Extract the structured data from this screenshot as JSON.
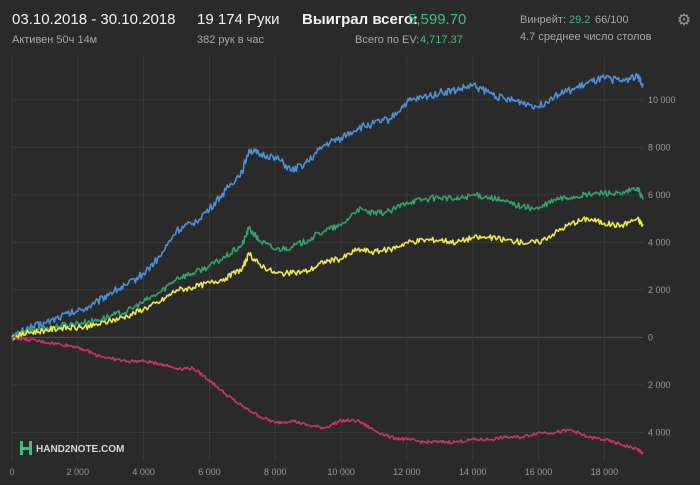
{
  "header": {
    "date_range": "03.10.2018 - 30.10.2018",
    "active": "Активен 50ч 14м",
    "hands": "19 174 Руки",
    "hands_per_hour": "382 рук в час",
    "won_label": "Выиграл всего:",
    "won_value": "5,599.70",
    "ev_label": "Всего по EV:",
    "ev_value": "4,717.37",
    "winrate_label": "Винрейт:",
    "winrate_value": "29.2",
    "winrate_extra": "66/100",
    "tables": "4.7 среднее число столов"
  },
  "logo_text": "HAND2NOTE.COM",
  "colors": {
    "background": "#2a2a2a",
    "grid": "#3a3a3a",
    "accent_green": "#3fbf7f"
  },
  "chart_data": {
    "type": "line",
    "title": "",
    "xlabel": "",
    "ylabel": "",
    "xlim": [
      0,
      19174
    ],
    "ylim": [
      -5200,
      11800
    ],
    "x_ticks": [
      0,
      2000,
      4000,
      6000,
      8000,
      10000,
      12000,
      14000,
      16000,
      18000
    ],
    "x_tick_labels": [
      "0",
      "2 000",
      "4 000",
      "6 000",
      "8 000",
      "10 000",
      "12 000",
      "14 000",
      "16 000",
      "18 000"
    ],
    "y_ticks": [
      -4000,
      -2000,
      0,
      2000,
      4000,
      6000,
      8000,
      10000
    ],
    "y_tick_labels": [
      "4 000",
      "2 000",
      "0",
      "2 000",
      "4 000",
      "6 000",
      "8 000",
      "10 000"
    ],
    "grid": true,
    "series": [
      {
        "color": "#4a90d9",
        "x": [
          0,
          500,
          1000,
          1500,
          2000,
          2500,
          3000,
          3500,
          4000,
          4500,
          5000,
          5500,
          6000,
          6500,
          7000,
          7200,
          7500,
          8000,
          8500,
          9000,
          9500,
          10000,
          10500,
          11000,
          11500,
          12000,
          12500,
          13000,
          13500,
          14000,
          14500,
          15000,
          15500,
          16000,
          16500,
          17000,
          17500,
          18000,
          18500,
          19000,
          19174
        ],
        "y": [
          0,
          400,
          600,
          900,
          1100,
          1400,
          1900,
          2200,
          2700,
          3400,
          4500,
          4800,
          5400,
          6200,
          7000,
          7900,
          7700,
          7600,
          7000,
          7400,
          8100,
          8400,
          8800,
          9000,
          9200,
          9900,
          10100,
          10300,
          10400,
          10600,
          10300,
          10000,
          9900,
          9700,
          10200,
          10400,
          10700,
          10900,
          10800,
          11000,
          10600
        ]
      },
      {
        "color": "#2ea36b",
        "x": [
          0,
          500,
          1000,
          1500,
          2000,
          2500,
          3000,
          3500,
          4000,
          4500,
          5000,
          5500,
          6000,
          6500,
          7000,
          7200,
          7500,
          8000,
          8500,
          9000,
          9500,
          10000,
          10500,
          11000,
          11500,
          12000,
          12500,
          13000,
          13500,
          14000,
          14500,
          15000,
          15500,
          16000,
          16500,
          17000,
          17500,
          18000,
          18500,
          19000,
          19174
        ],
        "y": [
          0,
          300,
          400,
          500,
          600,
          700,
          900,
          1100,
          1500,
          1900,
          2500,
          2700,
          3000,
          3400,
          3900,
          4600,
          4100,
          3700,
          3800,
          4100,
          4500,
          4700,
          5400,
          5200,
          5300,
          5700,
          5800,
          5900,
          5800,
          6000,
          5900,
          5700,
          5500,
          5400,
          5800,
          5900,
          6000,
          6100,
          6000,
          6300,
          5800
        ]
      },
      {
        "color": "#f0e64a",
        "x": [
          0,
          500,
          1000,
          1500,
          2000,
          2500,
          3000,
          3500,
          4000,
          4500,
          5000,
          5500,
          6000,
          6500,
          7000,
          7200,
          7500,
          8000,
          8500,
          9000,
          9500,
          10000,
          10500,
          11000,
          11500,
          12000,
          12500,
          13000,
          13500,
          14000,
          14500,
          15000,
          15500,
          16000,
          16500,
          17000,
          17500,
          18000,
          18500,
          19000,
          19174
        ],
        "y": [
          0,
          200,
          300,
          400,
          400,
          500,
          700,
          900,
          1200,
          1500,
          2000,
          2100,
          2300,
          2500,
          2900,
          3500,
          3100,
          2700,
          2700,
          2800,
          3200,
          3300,
          3700,
          3600,
          3700,
          4000,
          4100,
          4100,
          4000,
          4200,
          4200,
          4100,
          4000,
          4000,
          4400,
          4800,
          5000,
          4800,
          4700,
          5000,
          4700
        ]
      },
      {
        "color": "#c7336b",
        "x": [
          0,
          500,
          1000,
          1500,
          2000,
          2500,
          3000,
          3500,
          4000,
          4500,
          5000,
          5500,
          6000,
          6500,
          7000,
          7500,
          8000,
          8500,
          9000,
          9500,
          10000,
          10500,
          11000,
          11500,
          12000,
          12500,
          13000,
          13500,
          14000,
          14500,
          15000,
          15500,
          16000,
          16500,
          17000,
          17500,
          18000,
          18500,
          19000,
          19174
        ],
        "y": [
          0,
          -100,
          -200,
          -300,
          -400,
          -700,
          -900,
          -1000,
          -1000,
          -1100,
          -1300,
          -1300,
          -1800,
          -2400,
          -2900,
          -3300,
          -3600,
          -3500,
          -3700,
          -3800,
          -3500,
          -3500,
          -3900,
          -4200,
          -4300,
          -4400,
          -4400,
          -4400,
          -4300,
          -4300,
          -4200,
          -4200,
          -4000,
          -4000,
          -3900,
          -4200,
          -4300,
          -4500,
          -4700,
          -4900
        ]
      }
    ]
  }
}
